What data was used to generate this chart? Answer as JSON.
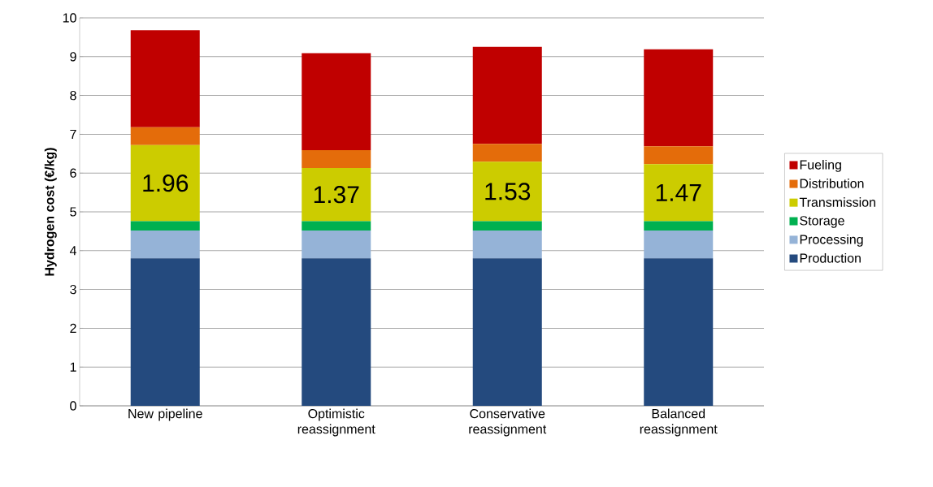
{
  "chart_data": {
    "type": "bar",
    "stacked": true,
    "ylabel": "Hydrogen cost (€/kg)",
    "categories": [
      "New pipeline",
      "Optimistic reassignment",
      "Conservative reassignment",
      "Balanced reassignment"
    ],
    "series": [
      {
        "name": "Production",
        "color": "#244a7e",
        "values": [
          3.8,
          3.8,
          3.8,
          3.8
        ]
      },
      {
        "name": "Processing",
        "color": "#95b3d7",
        "values": [
          0.72,
          0.72,
          0.72,
          0.72
        ]
      },
      {
        "name": "Storage",
        "color": "#00b050",
        "values": [
          0.24,
          0.24,
          0.24,
          0.24
        ]
      },
      {
        "name": "Transmission",
        "color": "#cccc00",
        "values": [
          1.96,
          1.37,
          1.53,
          1.47
        ],
        "value_labels": [
          "1.96",
          "1.37",
          "1.53",
          "1.47"
        ]
      },
      {
        "name": "Distribution",
        "color": "#e46c0a",
        "values": [
          0.46,
          0.46,
          0.46,
          0.46
        ]
      },
      {
        "name": "Fueling",
        "color": "#c00000",
        "values": [
          2.5,
          2.5,
          2.5,
          2.5
        ]
      }
    ],
    "ylim": [
      0,
      10
    ],
    "yticks": [
      0,
      1,
      2,
      3,
      4,
      5,
      6,
      7,
      8,
      9,
      10
    ],
    "grid": "y",
    "legend": "right"
  }
}
